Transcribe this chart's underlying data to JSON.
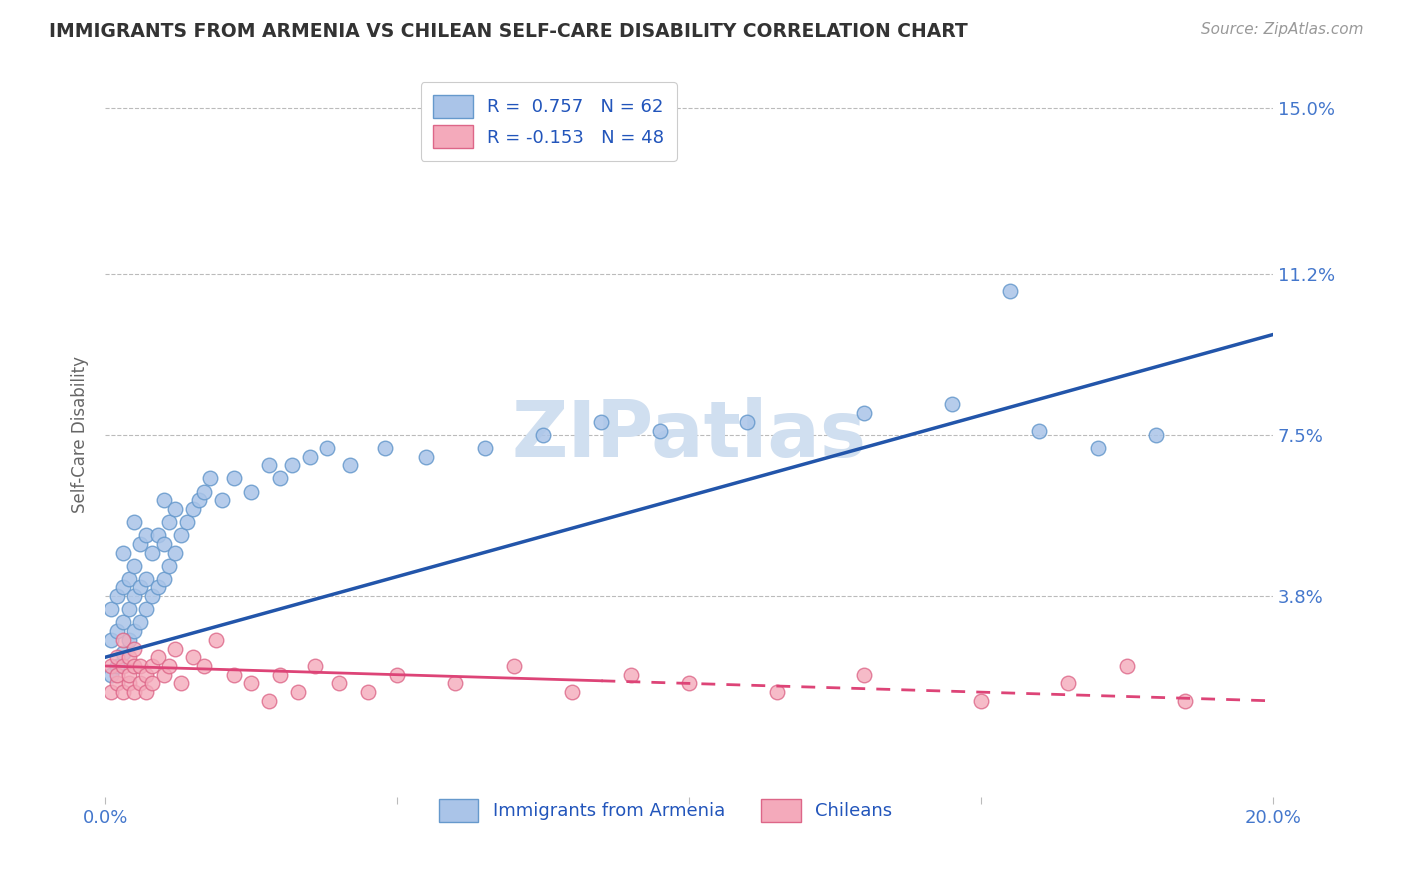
{
  "title": "IMMIGRANTS FROM ARMENIA VS CHILEAN SELF-CARE DISABILITY CORRELATION CHART",
  "source": "Source: ZipAtlas.com",
  "ylabel": "Self-Care Disability",
  "xlim": [
    0.0,
    0.2
  ],
  "ylim": [
    -0.008,
    0.158
  ],
  "yticks": [
    0.038,
    0.075,
    0.112,
    0.15
  ],
  "ytick_labels": [
    "3.8%",
    "7.5%",
    "11.2%",
    "15.0%"
  ],
  "xticks": [
    0.0,
    0.05,
    0.1,
    0.15,
    0.2
  ],
  "xtick_labels": [
    "0.0%",
    "",
    "",
    "",
    "20.0%"
  ],
  "series1_color": "#aac4e8",
  "series1_edge": "#6699cc",
  "series2_color": "#f4aabb",
  "series2_edge": "#dd6688",
  "trend1_color": "#2255aa",
  "trend2_color": "#dd4477",
  "background_color": "#ffffff",
  "title_color": "#333333",
  "axis_label_color": "#666666",
  "tick_label_color": "#4477cc",
  "watermark_text": "ZIPatlas",
  "watermark_color": "#d0dff0",
  "legend_box_color1": "#aac4e8",
  "legend_box_color2": "#f4aabb",
  "trend1_start_x": 0.0,
  "trend1_start_y": 0.024,
  "trend1_end_x": 0.2,
  "trend1_end_y": 0.098,
  "trend2_start_x": 0.0,
  "trend2_start_y": 0.022,
  "trend2_end_x": 0.2,
  "trend2_end_y": 0.014,
  "trend2_dash_start": 0.085,
  "blue_x": [
    0.001,
    0.001,
    0.001,
    0.002,
    0.002,
    0.002,
    0.003,
    0.003,
    0.003,
    0.003,
    0.004,
    0.004,
    0.004,
    0.005,
    0.005,
    0.005,
    0.005,
    0.006,
    0.006,
    0.006,
    0.007,
    0.007,
    0.007,
    0.008,
    0.008,
    0.009,
    0.009,
    0.01,
    0.01,
    0.01,
    0.011,
    0.011,
    0.012,
    0.012,
    0.013,
    0.014,
    0.015,
    0.016,
    0.017,
    0.018,
    0.02,
    0.022,
    0.025,
    0.028,
    0.03,
    0.032,
    0.035,
    0.038,
    0.042,
    0.048,
    0.055,
    0.065,
    0.075,
    0.085,
    0.095,
    0.11,
    0.13,
    0.145,
    0.16,
    0.17,
    0.155,
    0.18
  ],
  "blue_y": [
    0.02,
    0.028,
    0.035,
    0.022,
    0.03,
    0.038,
    0.025,
    0.032,
    0.04,
    0.048,
    0.028,
    0.035,
    0.042,
    0.03,
    0.038,
    0.045,
    0.055,
    0.032,
    0.04,
    0.05,
    0.035,
    0.042,
    0.052,
    0.038,
    0.048,
    0.04,
    0.052,
    0.042,
    0.05,
    0.06,
    0.045,
    0.055,
    0.048,
    0.058,
    0.052,
    0.055,
    0.058,
    0.06,
    0.062,
    0.065,
    0.06,
    0.065,
    0.062,
    0.068,
    0.065,
    0.068,
    0.07,
    0.072,
    0.068,
    0.072,
    0.07,
    0.072,
    0.075,
    0.078,
    0.076,
    0.078,
    0.08,
    0.082,
    0.076,
    0.072,
    0.108,
    0.075
  ],
  "pink_x": [
    0.001,
    0.001,
    0.002,
    0.002,
    0.002,
    0.003,
    0.003,
    0.003,
    0.004,
    0.004,
    0.004,
    0.005,
    0.005,
    0.005,
    0.006,
    0.006,
    0.007,
    0.007,
    0.008,
    0.008,
    0.009,
    0.01,
    0.011,
    0.012,
    0.013,
    0.015,
    0.017,
    0.019,
    0.022,
    0.025,
    0.028,
    0.03,
    0.033,
    0.036,
    0.04,
    0.045,
    0.05,
    0.06,
    0.07,
    0.08,
    0.09,
    0.1,
    0.115,
    0.13,
    0.15,
    0.165,
    0.175,
    0.185
  ],
  "pink_y": [
    0.016,
    0.022,
    0.018,
    0.024,
    0.02,
    0.016,
    0.022,
    0.028,
    0.018,
    0.024,
    0.02,
    0.016,
    0.022,
    0.026,
    0.018,
    0.022,
    0.02,
    0.016,
    0.022,
    0.018,
    0.024,
    0.02,
    0.022,
    0.026,
    0.018,
    0.024,
    0.022,
    0.028,
    0.02,
    0.018,
    0.014,
    0.02,
    0.016,
    0.022,
    0.018,
    0.016,
    0.02,
    0.018,
    0.022,
    0.016,
    0.02,
    0.018,
    0.016,
    0.02,
    0.014,
    0.018,
    0.022,
    0.014
  ]
}
